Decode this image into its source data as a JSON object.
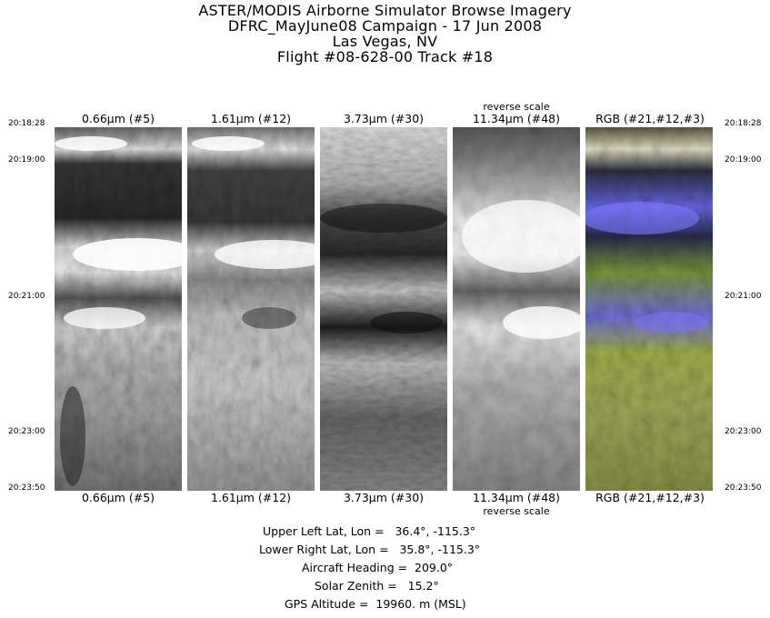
{
  "title": {
    "line1": "ASTER/MODIS Airborne Simulator Browse Imagery",
    "line2": "DFRC_MayJune08 Campaign - 17 Jun 2008",
    "line3": "Las Vegas, NV",
    "line4": "Flight #08-628-00 Track #18"
  },
  "panels": [
    {
      "label": "0.66μm (#5)",
      "note": ""
    },
    {
      "label": "1.61μm (#12)",
      "note": ""
    },
    {
      "label": "3.73μm (#30)",
      "note": ""
    },
    {
      "label": "11.34μm (#48)",
      "note": "reverse scale"
    },
    {
      "label": "RGB (#21,#12,#3)",
      "note": ""
    }
  ],
  "times": [
    "20:18:28",
    "20:19:00",
    "20:21:00",
    "20:23:00",
    "20:23:50"
  ],
  "info": {
    "upper_left": "Upper Left Lat, Lon =   36.4°, -115.3°",
    "lower_right": "Lower Right Lat, Lon =   35.8°, -115.3°",
    "heading": "Aircraft Heading =  209.0°",
    "zenith": "Solar Zenith =   15.2°",
    "altitude": "GPS Altitude =  19960. m (MSL)"
  }
}
